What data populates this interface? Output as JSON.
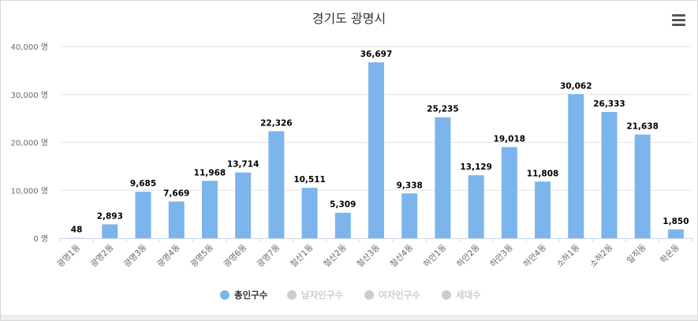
{
  "header": {
    "title": "경기도 광명시",
    "menu_icon": "hamburger-menu-icon"
  },
  "colors": {
    "accent": "#7cb5ec",
    "inactive_legend": "#cccccc",
    "grid": "#e6e6e6",
    "axis_text": "#666666",
    "label_text": "#000000"
  },
  "chart_data": {
    "type": "bar",
    "title": "경기도 광명시",
    "categories": [
      "광명1동",
      "광명2동",
      "광명3동",
      "광명4동",
      "광명5동",
      "광명6동",
      "광명7동",
      "철산1동",
      "철산2동",
      "철산3동",
      "철산4동",
      "하안1동",
      "하안2동",
      "하안3동",
      "하안4동",
      "소하1동",
      "소하2동",
      "일직동",
      "학온동"
    ],
    "series": [
      {
        "name": "총인구수",
        "values": [
          48,
          2893,
          9685,
          7669,
          11968,
          13714,
          22326,
          10511,
          5309,
          36697,
          9338,
          25235,
          13129,
          19018,
          11808,
          30062,
          26333,
          21638,
          1850
        ],
        "visible": true
      },
      {
        "name": "남자인구수",
        "visible": false
      },
      {
        "name": "여자인구수",
        "visible": false
      },
      {
        "name": "세대수",
        "visible": false
      }
    ],
    "data_labels": [
      "48",
      "2,893",
      "9,685",
      "7,669",
      "11,968",
      "13,714",
      "22,326",
      "10,511",
      "5,309",
      "36,697",
      "9,338",
      "25,235",
      "13,129",
      "19,018",
      "11,808",
      "30,062",
      "26,333",
      "21,638",
      "1,850"
    ],
    "y_ticks": [
      0,
      10000,
      20000,
      30000,
      40000
    ],
    "y_tick_labels": [
      "0 명",
      "10,000 명",
      "20,000 명",
      "30,000 명",
      "40,000 명"
    ],
    "ylim": [
      0,
      40000
    ],
    "grid": true,
    "legend_position": "bottom-center"
  }
}
